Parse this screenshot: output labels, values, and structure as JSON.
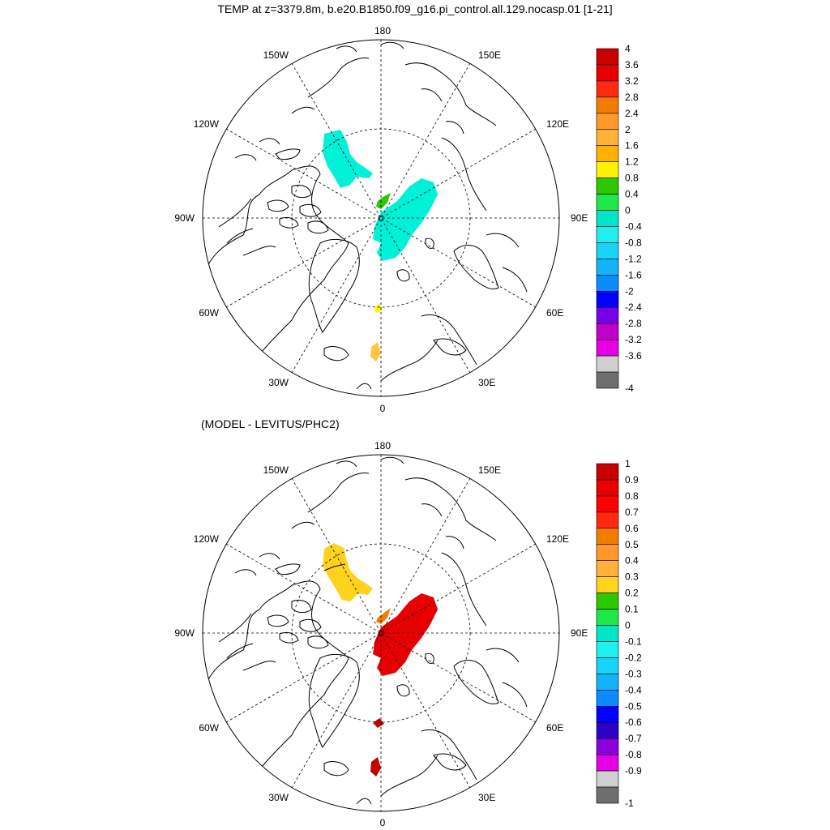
{
  "figure": {
    "title": "TEMP at z=3379.8m, b.e20.B1850.f09_g16.pi_control.all.129.nocasp.01 [1-21]",
    "subtitle": "(MODEL - LEVITUS/PHC2)"
  },
  "map_labels": {
    "top": "180",
    "bottom": "0",
    "left": "90W",
    "right": "90E",
    "upper_left_1": "150W",
    "upper_left_2": "120W",
    "lower_left_1": "60W",
    "lower_left_2": "30W",
    "upper_right_1": "150E",
    "upper_right_2": "120E",
    "lower_right_1": "60E",
    "lower_right_2": "30E"
  },
  "maps": [
    {
      "name": "model-temperature",
      "colorbar": {
        "labels": [
          "4",
          "3.6",
          "3.2",
          "2.8",
          "2.4",
          "2",
          "1.6",
          "1.2",
          "0.8",
          "0.4",
          "0",
          "-0.4",
          "-0.8",
          "-1.2",
          "-1.6",
          "-2",
          "-2.4",
          "-2.8",
          "-3.2",
          "-3.6",
          "-4"
        ],
        "colors": [
          "#c80000",
          "#e60000",
          "#ff2a10",
          "#f07d00",
          "#ff9a2a",
          "#ffb23a",
          "#ffb000",
          "#fff200",
          "#2ec800",
          "#1ee84a",
          "#00e6c8",
          "#1ef0f0",
          "#18d4f8",
          "#12b4f8",
          "#0a8cff",
          "#0000ff",
          "#7800e6",
          "#c000c8",
          "#e600e6",
          "#d0d0d0",
          "#6e6e6e"
        ]
      }
    },
    {
      "name": "model-minus-levitus",
      "colorbar": {
        "labels": [
          "1",
          "0.9",
          "0.8",
          "0.7",
          "0.6",
          "0.5",
          "0.4",
          "0.3",
          "0.2",
          "0.1",
          "0",
          "-0.1",
          "-0.2",
          "-0.3",
          "-0.4",
          "-0.5",
          "-0.6",
          "-0.7",
          "-0.8",
          "-0.9",
          "-1"
        ],
        "colors": [
          "#c80000",
          "#e60000",
          "#ff0000",
          "#ff2a10",
          "#f07d00",
          "#ff9a2a",
          "#ffb23a",
          "#ffd21e",
          "#2ec800",
          "#1ee84a",
          "#00e6c8",
          "#1ef0f0",
          "#18d4f8",
          "#12b4f8",
          "#0a8cff",
          "#0000ff",
          "#2d00c8",
          "#8c00dc",
          "#e600e6",
          "#d0d0d0",
          "#6e6e6e"
        ]
      }
    }
  ]
}
